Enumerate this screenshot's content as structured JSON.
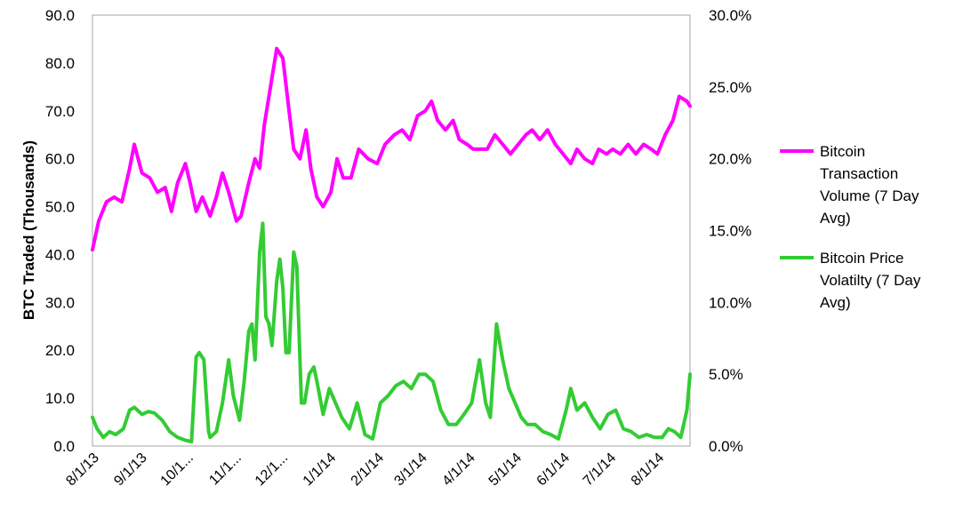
{
  "chart_data": {
    "type": "line",
    "title": "",
    "ylabel": "BTC Traded (Thousands)",
    "y2label": "",
    "ylim": [
      0,
      90
    ],
    "y2lim": [
      0,
      0.3
    ],
    "y_ticks": [
      "0.0",
      "10.0",
      "20.0",
      "30.0",
      "40.0",
      "50.0",
      "60.0",
      "70.0",
      "80.0",
      "90.0"
    ],
    "y2_ticks": [
      "0.0%",
      "5.0%",
      "10.0%",
      "15.0%",
      "20.0%",
      "25.0%",
      "30.0%"
    ],
    "x_range": [
      "2013-08-01",
      "2014-08-22"
    ],
    "x_ticks": [
      {
        "date": "2013-08-01",
        "label": "8/1/13"
      },
      {
        "date": "2013-09-01",
        "label": "9/1/13"
      },
      {
        "date": "2013-10-01",
        "label": "10/1..."
      },
      {
        "date": "2013-11-01",
        "label": "11/1..."
      },
      {
        "date": "2013-12-01",
        "label": "12/1..."
      },
      {
        "date": "2014-01-01",
        "label": "1/1/14"
      },
      {
        "date": "2014-02-01",
        "label": "2/1/14"
      },
      {
        "date": "2014-03-01",
        "label": "3/1/14"
      },
      {
        "date": "2014-04-01",
        "label": "4/1/14"
      },
      {
        "date": "2014-05-01",
        "label": "5/1/14"
      },
      {
        "date": "2014-06-01",
        "label": "6/1/14"
      },
      {
        "date": "2014-07-01",
        "label": "7/1/14"
      },
      {
        "date": "2014-08-01",
        "label": "8/1/14"
      }
    ],
    "grid": false,
    "legend_position": "right",
    "series": [
      {
        "name": "Bitcoin Transaction Volume (7 Day Avg)",
        "axis": "left",
        "color": "#ff00ff",
        "x": [
          "2013-08-01",
          "2013-08-05",
          "2013-08-10",
          "2013-08-15",
          "2013-08-20",
          "2013-08-25",
          "2013-08-28",
          "2013-09-02",
          "2013-09-07",
          "2013-09-12",
          "2013-09-17",
          "2013-09-21",
          "2013-09-25",
          "2013-09-30",
          "2013-10-03",
          "2013-10-07",
          "2013-10-11",
          "2013-10-16",
          "2013-10-20",
          "2013-10-24",
          "2013-10-28",
          "2013-11-02",
          "2013-11-05",
          "2013-11-10",
          "2013-11-14",
          "2013-11-17",
          "2013-11-20",
          "2013-11-24",
          "2013-11-28",
          "2013-12-02",
          "2013-12-06",
          "2013-12-09",
          "2013-12-13",
          "2013-12-17",
          "2013-12-20",
          "2013-12-24",
          "2013-12-28",
          "2014-01-02",
          "2014-01-06",
          "2014-01-10",
          "2014-01-15",
          "2014-01-20",
          "2014-01-26",
          "2014-02-01",
          "2014-02-06",
          "2014-02-12",
          "2014-02-17",
          "2014-02-22",
          "2014-02-27",
          "2014-03-04",
          "2014-03-08",
          "2014-03-12",
          "2014-03-17",
          "2014-03-22",
          "2014-03-26",
          "2014-03-31",
          "2014-04-04",
          "2014-04-08",
          "2014-04-13",
          "2014-04-18",
          "2014-04-23",
          "2014-04-28",
          "2014-05-03",
          "2014-05-08",
          "2014-05-12",
          "2014-05-17",
          "2014-05-22",
          "2014-05-27",
          "2014-06-01",
          "2014-06-06",
          "2014-06-10",
          "2014-06-15",
          "2014-06-20",
          "2014-06-24",
          "2014-06-29",
          "2014-07-03",
          "2014-07-08",
          "2014-07-13",
          "2014-07-18",
          "2014-07-23",
          "2014-07-28",
          "2014-08-01",
          "2014-08-06",
          "2014-08-11",
          "2014-08-15",
          "2014-08-20",
          "2014-08-22"
        ],
        "values": [
          41,
          47,
          51,
          52,
          51,
          58,
          63,
          57,
          56,
          53,
          54,
          49,
          55,
          59,
          55,
          49,
          52,
          48,
          52,
          57,
          53,
          47,
          48,
          55,
          60,
          58,
          67,
          75,
          83,
          81,
          70,
          62,
          60,
          66,
          58,
          52,
          50,
          53,
          60,
          56,
          56,
          62,
          60,
          59,
          63,
          65,
          66,
          64,
          69,
          70,
          72,
          68,
          66,
          68,
          64,
          63,
          62,
          62,
          62,
          65,
          63,
          61,
          63,
          65,
          66,
          64,
          66,
          63,
          61,
          59,
          62,
          60,
          59,
          62,
          61,
          62,
          61,
          63,
          61,
          63,
          62,
          61,
          65,
          68,
          73,
          72,
          71
        ],
        "name_lines": [
          "Bitcoin",
          "Transaction",
          "Volume (7 Day",
          "Avg)"
        ]
      },
      {
        "name": "Bitcoin Price Volatilty (7 Day Avg)",
        "axis": "right",
        "color": "#33cc33",
        "x": [
          "2013-08-01",
          "2013-08-04",
          "2013-08-08",
          "2013-08-12",
          "2013-08-16",
          "2013-08-21",
          "2013-08-25",
          "2013-08-28",
          "2013-09-02",
          "2013-09-06",
          "2013-09-10",
          "2013-09-15",
          "2013-09-20",
          "2013-09-25",
          "2013-09-30",
          "2013-10-04",
          "2013-10-07",
          "2013-10-09",
          "2013-10-12",
          "2013-10-15",
          "2013-10-16",
          "2013-10-20",
          "2013-10-24",
          "2013-10-28",
          "2013-10-31",
          "2013-11-04",
          "2013-11-07",
          "2013-11-10",
          "2013-11-12",
          "2013-11-14",
          "2013-11-17",
          "2013-11-19",
          "2013-11-21",
          "2013-11-23",
          "2013-11-25",
          "2013-11-28",
          "2013-11-30",
          "2013-12-02",
          "2013-12-04",
          "2013-12-06",
          "2013-12-09",
          "2013-12-11",
          "2013-12-14",
          "2013-12-16",
          "2013-12-19",
          "2013-12-22",
          "2013-12-24",
          "2013-12-28",
          "2014-01-01",
          "2014-01-05",
          "2014-01-09",
          "2014-01-14",
          "2014-01-19",
          "2014-01-24",
          "2014-01-29",
          "2014-02-03",
          "2014-02-08",
          "2014-02-13",
          "2014-02-18",
          "2014-02-23",
          "2014-02-28",
          "2014-03-04",
          "2014-03-09",
          "2014-03-14",
          "2014-03-19",
          "2014-03-24",
          "2014-03-29",
          "2014-04-03",
          "2014-04-08",
          "2014-04-12",
          "2014-04-15",
          "2014-04-19",
          "2014-04-23",
          "2014-04-27",
          "2014-05-01",
          "2014-05-05",
          "2014-05-09",
          "2014-05-14",
          "2014-05-19",
          "2014-05-24",
          "2014-05-29",
          "2014-06-03",
          "2014-06-06",
          "2014-06-10",
          "2014-06-15",
          "2014-06-20",
          "2014-06-25",
          "2014-06-30",
          "2014-07-05",
          "2014-07-10",
          "2014-07-15",
          "2014-07-20",
          "2014-07-25",
          "2014-07-30",
          "2014-08-04",
          "2014-08-08",
          "2014-08-12",
          "2014-08-16",
          "2014-08-20",
          "2014-08-22"
        ],
        "values": [
          0.02,
          0.012,
          0.006,
          0.01,
          0.008,
          0.012,
          0.025,
          0.027,
          0.022,
          0.024,
          0.023,
          0.018,
          0.01,
          0.006,
          0.004,
          0.003,
          0.062,
          0.065,
          0.06,
          0.01,
          0.006,
          0.01,
          0.03,
          0.06,
          0.035,
          0.018,
          0.045,
          0.08,
          0.085,
          0.06,
          0.135,
          0.155,
          0.09,
          0.085,
          0.07,
          0.115,
          0.13,
          0.11,
          0.065,
          0.065,
          0.135,
          0.125,
          0.03,
          0.03,
          0.05,
          0.055,
          0.045,
          0.022,
          0.04,
          0.03,
          0.02,
          0.012,
          0.03,
          0.008,
          0.005,
          0.03,
          0.035,
          0.042,
          0.045,
          0.04,
          0.05,
          0.05,
          0.045,
          0.025,
          0.015,
          0.015,
          0.022,
          0.03,
          0.06,
          0.03,
          0.02,
          0.085,
          0.06,
          0.04,
          0.03,
          0.02,
          0.015,
          0.015,
          0.01,
          0.008,
          0.005,
          0.025,
          0.04,
          0.025,
          0.03,
          0.02,
          0.012,
          0.022,
          0.025,
          0.012,
          0.01,
          0.006,
          0.008,
          0.006,
          0.006,
          0.012,
          0.01,
          0.006,
          0.025,
          0.05
        ],
        "name_lines": [
          "Bitcoin Price",
          "Volatilty (7 Day",
          "Avg)"
        ]
      }
    ]
  }
}
